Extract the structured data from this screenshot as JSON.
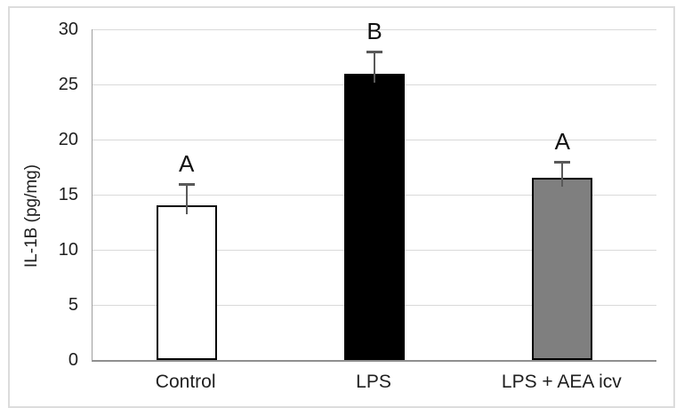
{
  "chart_data": {
    "type": "bar",
    "title": "",
    "xlabel": "",
    "ylabel": "IL-1B (pg/mg)",
    "categories": [
      "Control",
      "LPS",
      "LPS + AEA icv"
    ],
    "series": [
      {
        "name": "IL-1B (pg/mg)",
        "values": [
          14,
          26,
          16.5
        ],
        "errors_up": [
          2,
          2,
          1.5
        ],
        "fill_colors": [
          "#ffffff",
          "#000000",
          "#7f7f7f"
        ]
      }
    ],
    "significance_letters": [
      "A",
      "B",
      "A"
    ],
    "ylim": [
      0,
      30
    ],
    "yticks": [
      0,
      5,
      10,
      15,
      20,
      25,
      30
    ],
    "grid": true,
    "legend_position": "none",
    "colors": {
      "gridline": "#d9d9d9",
      "x_axis": "#8f8f8f",
      "y_axis": "#9e9e9e",
      "error_bar": "#595959",
      "bar_border": "#000000",
      "text": "#1f1f1f",
      "frame_border": "#dcdcdc",
      "background": "#ffffff"
    }
  }
}
